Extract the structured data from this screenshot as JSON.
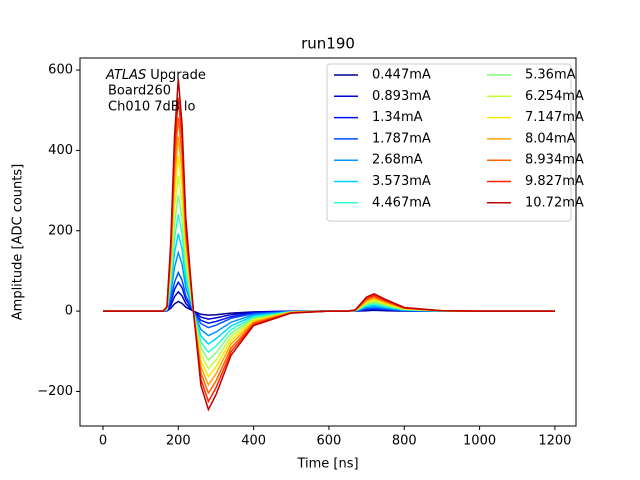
{
  "chart_data": {
    "type": "line",
    "title": "run190",
    "xlabel": "Time [ns]",
    "ylabel": "Amplitude [ADC counts]",
    "annotations": [
      {
        "italic": "ATLAS",
        "text": "Upgrade"
      },
      "Board260",
      "Ch010 7dB lo"
    ],
    "x": [
      0,
      100,
      160,
      170,
      180,
      190,
      200,
      210,
      220,
      240,
      260,
      280,
      300,
      340,
      400,
      500,
      600,
      650,
      670,
      700,
      720,
      750,
      800,
      900,
      1000,
      1200
    ],
    "xlim": [
      -61,
      1256
    ],
    "xticks": [
      0,
      200,
      400,
      600,
      800,
      1000,
      1200
    ],
    "ylim": [
      -286,
      630
    ],
    "yticks": [
      {
        "value": -200,
        "label": "−200"
      },
      0,
      200,
      400,
      600
    ],
    "legend": "upper right",
    "legend_columns": 2,
    "series": [
      {
        "name": "0.447mA",
        "color": "#00008f",
        "values": [
          0,
          0,
          0,
          0.5,
          7,
          18,
          24,
          19,
          10,
          0,
          -8,
          -10,
          -9,
          -5,
          -2,
          0,
          0,
          0,
          0,
          1,
          2,
          1,
          0,
          0,
          0,
          0
        ]
      },
      {
        "name": "0.893mA",
        "color": "#0000d0",
        "values": [
          0,
          0,
          0,
          1,
          14,
          36,
          48,
          38,
          19,
          0,
          -15,
          -20,
          -17,
          -9,
          -3,
          0,
          0,
          0,
          0,
          3,
          4,
          2,
          1,
          0,
          0,
          0
        ]
      },
      {
        "name": "1.34mA",
        "color": "#0010ff",
        "values": [
          0,
          0,
          0,
          1,
          22,
          54,
          72,
          58,
          29,
          0,
          -23,
          -30,
          -26,
          -14,
          -5,
          -1,
          0,
          0,
          0,
          4,
          5,
          4,
          1,
          0,
          0,
          0
        ]
      },
      {
        "name": "1.787mA",
        "color": "#0050ff",
        "values": [
          0,
          0,
          0,
          2,
          29,
          72,
          96,
          77,
          38,
          0,
          -31,
          -41,
          -35,
          -18,
          -6,
          -1,
          0,
          0,
          0,
          6,
          7,
          5,
          1,
          0,
          0,
          0
        ]
      },
      {
        "name": "2.68mA",
        "color": "#0094ff",
        "values": [
          0,
          0,
          0,
          3,
          44,
          109,
          145,
          116,
          58,
          0,
          -46,
          -61,
          -52,
          -28,
          -9,
          -1,
          0,
          0,
          1,
          9,
          11,
          7,
          2,
          0,
          0,
          0
        ]
      },
      {
        "name": "3.573mA",
        "color": "#00d4ff",
        "values": [
          0,
          0,
          0,
          4,
          58,
          145,
          193,
          154,
          77,
          0,
          -62,
          -82,
          -69,
          -37,
          -12,
          -2,
          0,
          0,
          1,
          12,
          14,
          10,
          3,
          0,
          0,
          0
        ]
      },
      {
        "name": "4.467mA",
        "color": "#29ffce",
        "values": [
          0,
          0,
          0,
          5,
          72,
          181,
          241,
          193,
          96,
          0,
          -77,
          -102,
          -87,
          -46,
          -15,
          -2,
          0,
          0,
          1,
          14,
          18,
          12,
          4,
          0,
          0,
          0
        ]
      },
      {
        "name": "5.36mA",
        "color": "#7dff7a",
        "values": [
          0,
          0,
          0,
          6,
          87,
          217,
          289,
          231,
          116,
          0,
          -92,
          -122,
          -104,
          -55,
          -18,
          -2,
          0,
          0,
          1,
          17,
          21,
          14,
          4,
          1,
          0,
          0
        ]
      },
      {
        "name": "6.254mA",
        "color": "#c1ff36",
        "values": [
          0,
          0,
          0,
          7,
          101,
          254,
          338,
          270,
          135,
          0,
          -108,
          -143,
          -122,
          -64,
          -21,
          -3,
          0,
          0,
          2,
          20,
          25,
          17,
          5,
          1,
          0,
          0
        ]
      },
      {
        "name": "7.147mA",
        "color": "#ffe600",
        "values": [
          0,
          0,
          0,
          8,
          116,
          290,
          386,
          309,
          154,
          0,
          -124,
          -163,
          -139,
          -73,
          -24,
          -3,
          0,
          0,
          2,
          23,
          29,
          19,
          6,
          1,
          0,
          0
        ]
      },
      {
        "name": "8.04mA",
        "color": "#ffa400",
        "values": [
          0,
          0,
          0,
          9,
          130,
          326,
          434,
          347,
          174,
          0,
          -139,
          -184,
          -156,
          -82,
          -27,
          -3,
          0,
          0,
          2,
          26,
          32,
          22,
          7,
          1,
          0,
          0
        ]
      },
      {
        "name": "8.934mA",
        "color": "#ff6200",
        "values": [
          0,
          0,
          0,
          10,
          145,
          362,
          482,
          386,
          193,
          0,
          -154,
          -204,
          -174,
          -92,
          -30,
          -4,
          0,
          0,
          2,
          29,
          36,
          24,
          7,
          1,
          0,
          0
        ]
      },
      {
        "name": "9.827mA",
        "color": "#ff2100",
        "values": [
          0,
          0,
          0,
          11,
          159,
          398,
          531,
          425,
          212,
          0,
          -170,
          -225,
          -191,
          -101,
          -33,
          -4,
          0,
          0,
          3,
          32,
          39,
          27,
          8,
          1,
          0,
          0
        ]
      },
      {
        "name": "10.72mA",
        "color": "#c00000",
        "values": [
          0,
          0,
          0,
          12,
          174,
          434,
          579,
          463,
          232,
          0,
          -185,
          -245,
          -208,
          -110,
          -36,
          -5,
          0,
          0,
          3,
          35,
          43,
          29,
          9,
          1,
          0,
          0
        ]
      }
    ]
  }
}
